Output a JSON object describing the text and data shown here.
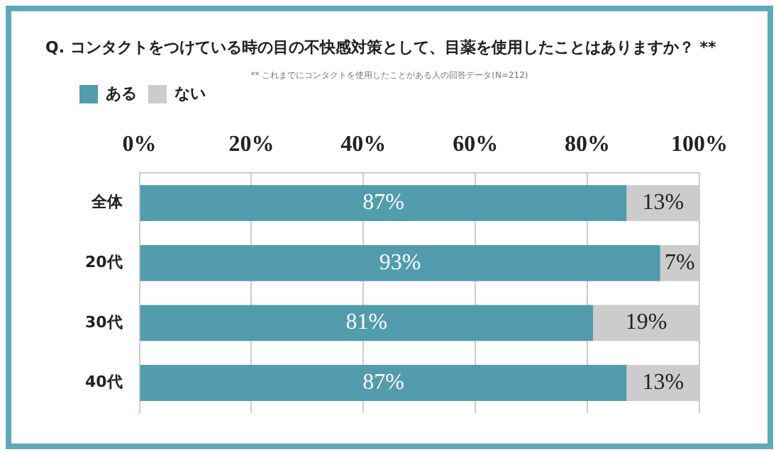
{
  "chart_data": {
    "type": "bar",
    "orientation": "horizontal",
    "stacked": true,
    "title": "Q. コンタクトをつけている時の目の不快感対策として、目薬を使用したことはありますか？ **",
    "subtitle": "** これまでにコンタクトを使用したことがある人の回答データ(N=212)",
    "categories": [
      "全体",
      "20代",
      "30代",
      "40代"
    ],
    "series": [
      {
        "name": "ある",
        "color": "#529cae",
        "values": [
          87,
          93,
          81,
          87
        ],
        "value_labels": [
          "87%",
          "93%",
          "81%",
          "87%"
        ]
      },
      {
        "name": "ない",
        "color": "#cccccc",
        "values": [
          13,
          7,
          19,
          13
        ],
        "value_labels": [
          "13%",
          "7%",
          "19%",
          "13%"
        ]
      }
    ],
    "xlim": [
      0,
      100
    ],
    "xticks": [
      {
        "value": 0,
        "label": "0%"
      },
      {
        "value": 20,
        "label": "20%"
      },
      {
        "value": 40,
        "label": "40%"
      },
      {
        "value": 60,
        "label": "60%"
      },
      {
        "value": 80,
        "label": "80%"
      },
      {
        "value": 100,
        "label": "100%"
      }
    ],
    "grid": "x",
    "legend": "top left"
  }
}
